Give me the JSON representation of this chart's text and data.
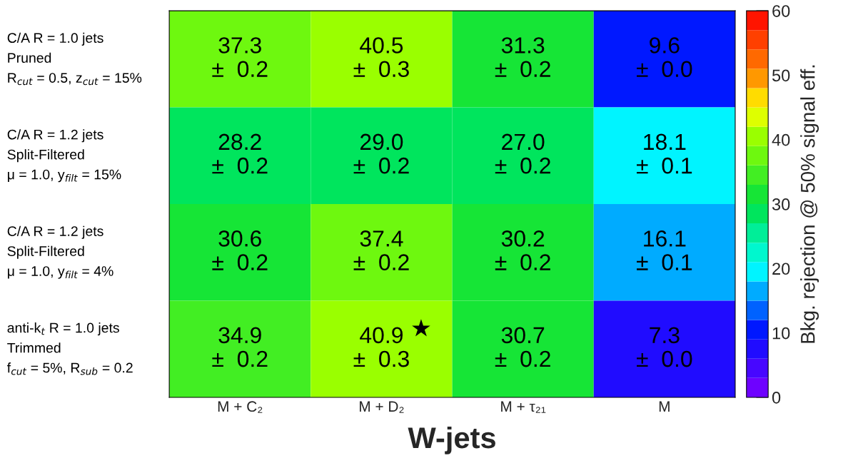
{
  "chart_data": {
    "type": "heatmap",
    "xlabel": "W-jets",
    "clabel": "Bkg. rejection @ 50% signal eff.",
    "categories": [
      "M + C₂",
      "M + D₂",
      "M + τ₂₁",
      "M"
    ],
    "y_categories": [
      "C/A R = 1.0 jets\nPruned\nR$_{cut}$ = 0.5, z$_{cut}$ = 15%",
      "C/A R = 1.2 jets\nSplit-Filtered\nμ = 1.0, y$_{filt}$ = 15%",
      "C/A R = 1.2 jets\nSplit-Filtered\nμ = 1.0, y$_{filt}$ = 4%",
      "anti-k$_{t}$ R = 1.0 jets\nTrimmed\nf$_{cut}$ = 5%, R$_{sub}$ = 0.2"
    ],
    "cells": [
      [
        37.3,
        40.5,
        31.3,
        9.6
      ],
      [
        28.2,
        29.0,
        27.0,
        18.1
      ],
      [
        30.6,
        37.4,
        30.2,
        16.1
      ],
      [
        34.9,
        40.9,
        30.7,
        7.3
      ]
    ],
    "cell_labels": [
      [
        "37.3\n±  0.2",
        "40.5\n±  0.3",
        "31.3\n±  0.2",
        "9.6\n±  0.0"
      ],
      [
        "28.2\n±  0.2",
        "29.0\n±  0.2",
        "27.0\n±  0.2",
        "18.1\n±  0.1"
      ],
      [
        "30.6\n±  0.2",
        "37.4\n±  0.2",
        "30.2\n±  0.2",
        "16.1\n±  0.1"
      ],
      [
        "34.9\n±  0.2",
        "40.9\n±  0.3",
        "30.7\n±  0.2",
        "7.3\n±  0.0"
      ]
    ],
    "clim": [
      0,
      60
    ],
    "cticks": [
      0,
      10,
      20,
      30,
      40,
      50,
      60
    ],
    "annotations": [
      "★"
    ]
  }
}
